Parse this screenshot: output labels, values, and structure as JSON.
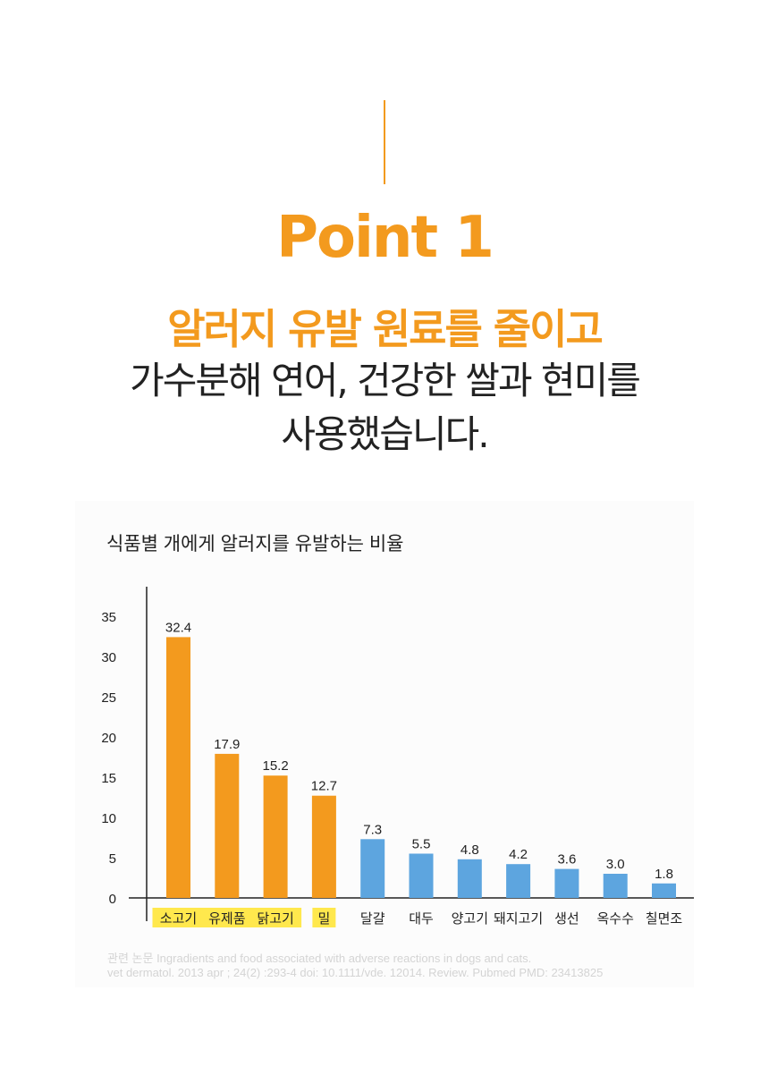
{
  "header": {
    "point_title": "Point 1",
    "headline": "알러지 유발 원료를 줄이고",
    "body_line_1": "가수분해 연어, 건강한 쌀과 현미를",
    "body_line_2": "사용했습니다."
  },
  "colors": {
    "accent": "#F39A1E",
    "bar_highlight": "#F39A1E",
    "bar_normal": "#5DA5DF",
    "label_highlight_bg": "#FFE84D",
    "text_dark": "#222222"
  },
  "chart_data": {
    "type": "bar",
    "title": "식품별 개에게 알러지를 유발하는 비율",
    "categories": [
      "소고기",
      "유제품",
      "닭고기",
      "밀",
      "달걀",
      "대두",
      "양고기",
      "돼지고기",
      "생선",
      "옥수수",
      "칠면조"
    ],
    "values": [
      32.4,
      17.9,
      15.2,
      12.7,
      7.3,
      5.5,
      4.8,
      4.2,
      3.6,
      3.0,
      1.8
    ],
    "value_labels": [
      "32.4",
      "17.9",
      "15.2",
      "12.7",
      "7.3",
      "5.5",
      "4.8",
      "4.2",
      "3.6",
      "3.0",
      "1.8"
    ],
    "highlighted": [
      true,
      true,
      true,
      true,
      false,
      false,
      false,
      false,
      false,
      false,
      false
    ],
    "yticks": [
      "0",
      "5",
      "10",
      "15",
      "20",
      "25",
      "30",
      "35"
    ],
    "ylim": [
      0,
      38
    ],
    "xlabel": "",
    "ylabel": "",
    "grid": false
  },
  "source": {
    "line_1": "관련 논문 Ingradients and food associated with adverse reactions in dogs and cats.",
    "line_2": "vet dermatol. 2013 apr ; 24(2) :293-4 doi: 10.1111/vde. 12014. Review. Pubmed PMD: 23413825"
  }
}
